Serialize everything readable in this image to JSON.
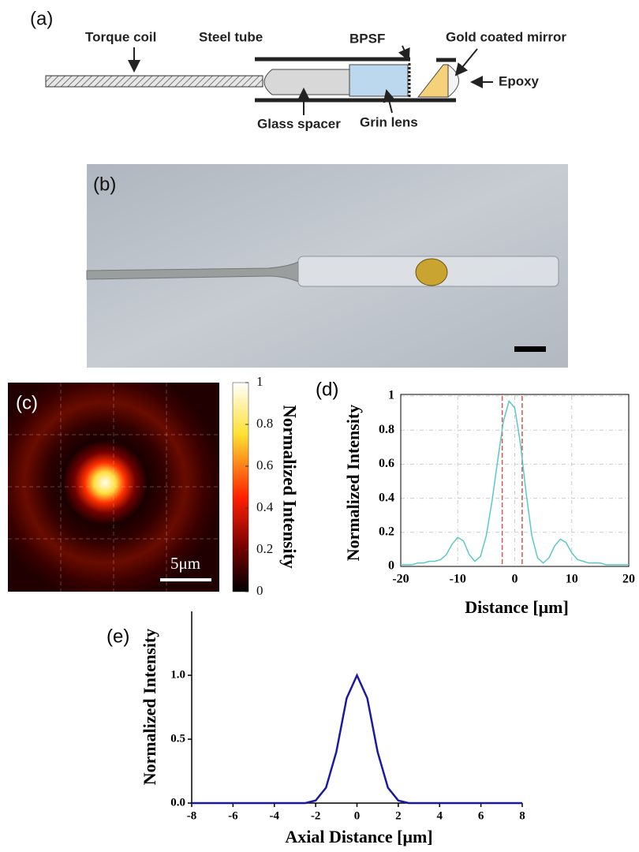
{
  "panel_a": {
    "label": "(a)",
    "torque_coil": "Torque coil",
    "steel_tube": "Steel tube",
    "bpsf": "BPSF",
    "mirror": "Gold coated mirror",
    "epoxy": "Epoxy",
    "glass_spacer": "Glass spacer",
    "grin_lens": "Grin lens"
  },
  "panel_b": {
    "label": "(b)"
  },
  "panel_c": {
    "label": "(c)",
    "scale_bar": "5μm",
    "colorbar": {
      "title": "Normalized Intensity",
      "lim": [
        0,
        1
      ],
      "ticks": [
        0,
        0.2,
        0.4,
        0.6,
        0.8,
        1
      ]
    }
  },
  "chart_data": [
    {
      "type": "line",
      "label": "(d)",
      "xlabel": "Distance [μm]",
      "ylabel": "Normalized Intensity",
      "color": "#5bc8c8",
      "grid": true,
      "x": [
        -20,
        -19,
        -18,
        -17,
        -16,
        -15,
        -14,
        -13,
        -12,
        -11,
        -10,
        -9,
        -8,
        -7,
        -6,
        -5,
        -4,
        -3,
        -2,
        -1,
        0,
        1,
        2,
        3,
        4,
        5,
        6,
        7,
        8,
        9,
        10,
        11,
        12,
        13,
        14,
        15,
        16,
        17,
        18,
        19,
        20
      ],
      "values": [
        0.01,
        0.01,
        0.01,
        0.02,
        0.02,
        0.03,
        0.03,
        0.04,
        0.07,
        0.13,
        0.17,
        0.15,
        0.07,
        0.03,
        0.06,
        0.18,
        0.38,
        0.62,
        0.85,
        0.97,
        0.93,
        0.72,
        0.43,
        0.18,
        0.05,
        0.02,
        0.05,
        0.12,
        0.16,
        0.14,
        0.08,
        0.04,
        0.03,
        0.02,
        0.02,
        0.02,
        0.01,
        0.01,
        0.01,
        0.01,
        0.01
      ],
      "xlim": [
        -20,
        20
      ],
      "ylim": [
        0,
        1
      ],
      "xticks": [
        -20,
        -10,
        0,
        10,
        20
      ],
      "yticks": [
        0,
        0.2,
        0.4,
        0.6,
        0.8,
        1
      ],
      "reference_lines": {
        "x": [
          -2.2,
          1.3
        ],
        "color": "#d9534f"
      }
    },
    {
      "type": "line",
      "label": "(e)",
      "xlabel": "Axial Distance [μm]",
      "ylabel": "Normalized Intensity",
      "color": "#1a1aa0",
      "grid": false,
      "x": [
        -8,
        -7.5,
        -7,
        -6.5,
        -6,
        -5.5,
        -5,
        -4.5,
        -4,
        -3.5,
        -3,
        -2.5,
        -2,
        -1.5,
        -1,
        -0.5,
        0,
        0.5,
        1,
        1.5,
        2,
        2.5,
        3,
        3.5,
        4,
        4.5,
        5,
        5.5,
        6,
        6.5,
        7,
        7.5,
        8
      ],
      "values": [
        0,
        0,
        0,
        0,
        0,
        0,
        0,
        0,
        0,
        0,
        0,
        0,
        0.02,
        0.12,
        0.4,
        0.82,
        1,
        0.82,
        0.4,
        0.12,
        0.02,
        0,
        0,
        0,
        0,
        0,
        0,
        0,
        0,
        0,
        0,
        0,
        0
      ],
      "xlim": [
        -8,
        8
      ],
      "ylim": [
        0,
        1.5
      ],
      "xticks": [
        -8,
        -6,
        -4,
        -2,
        0,
        2,
        4,
        6,
        8
      ],
      "yticks": [
        {
          "value": 0,
          "label": "0.0"
        },
        {
          "value": 0.5,
          "label": "0.5"
        },
        {
          "value": 1,
          "label": "1.0"
        }
      ]
    }
  ]
}
